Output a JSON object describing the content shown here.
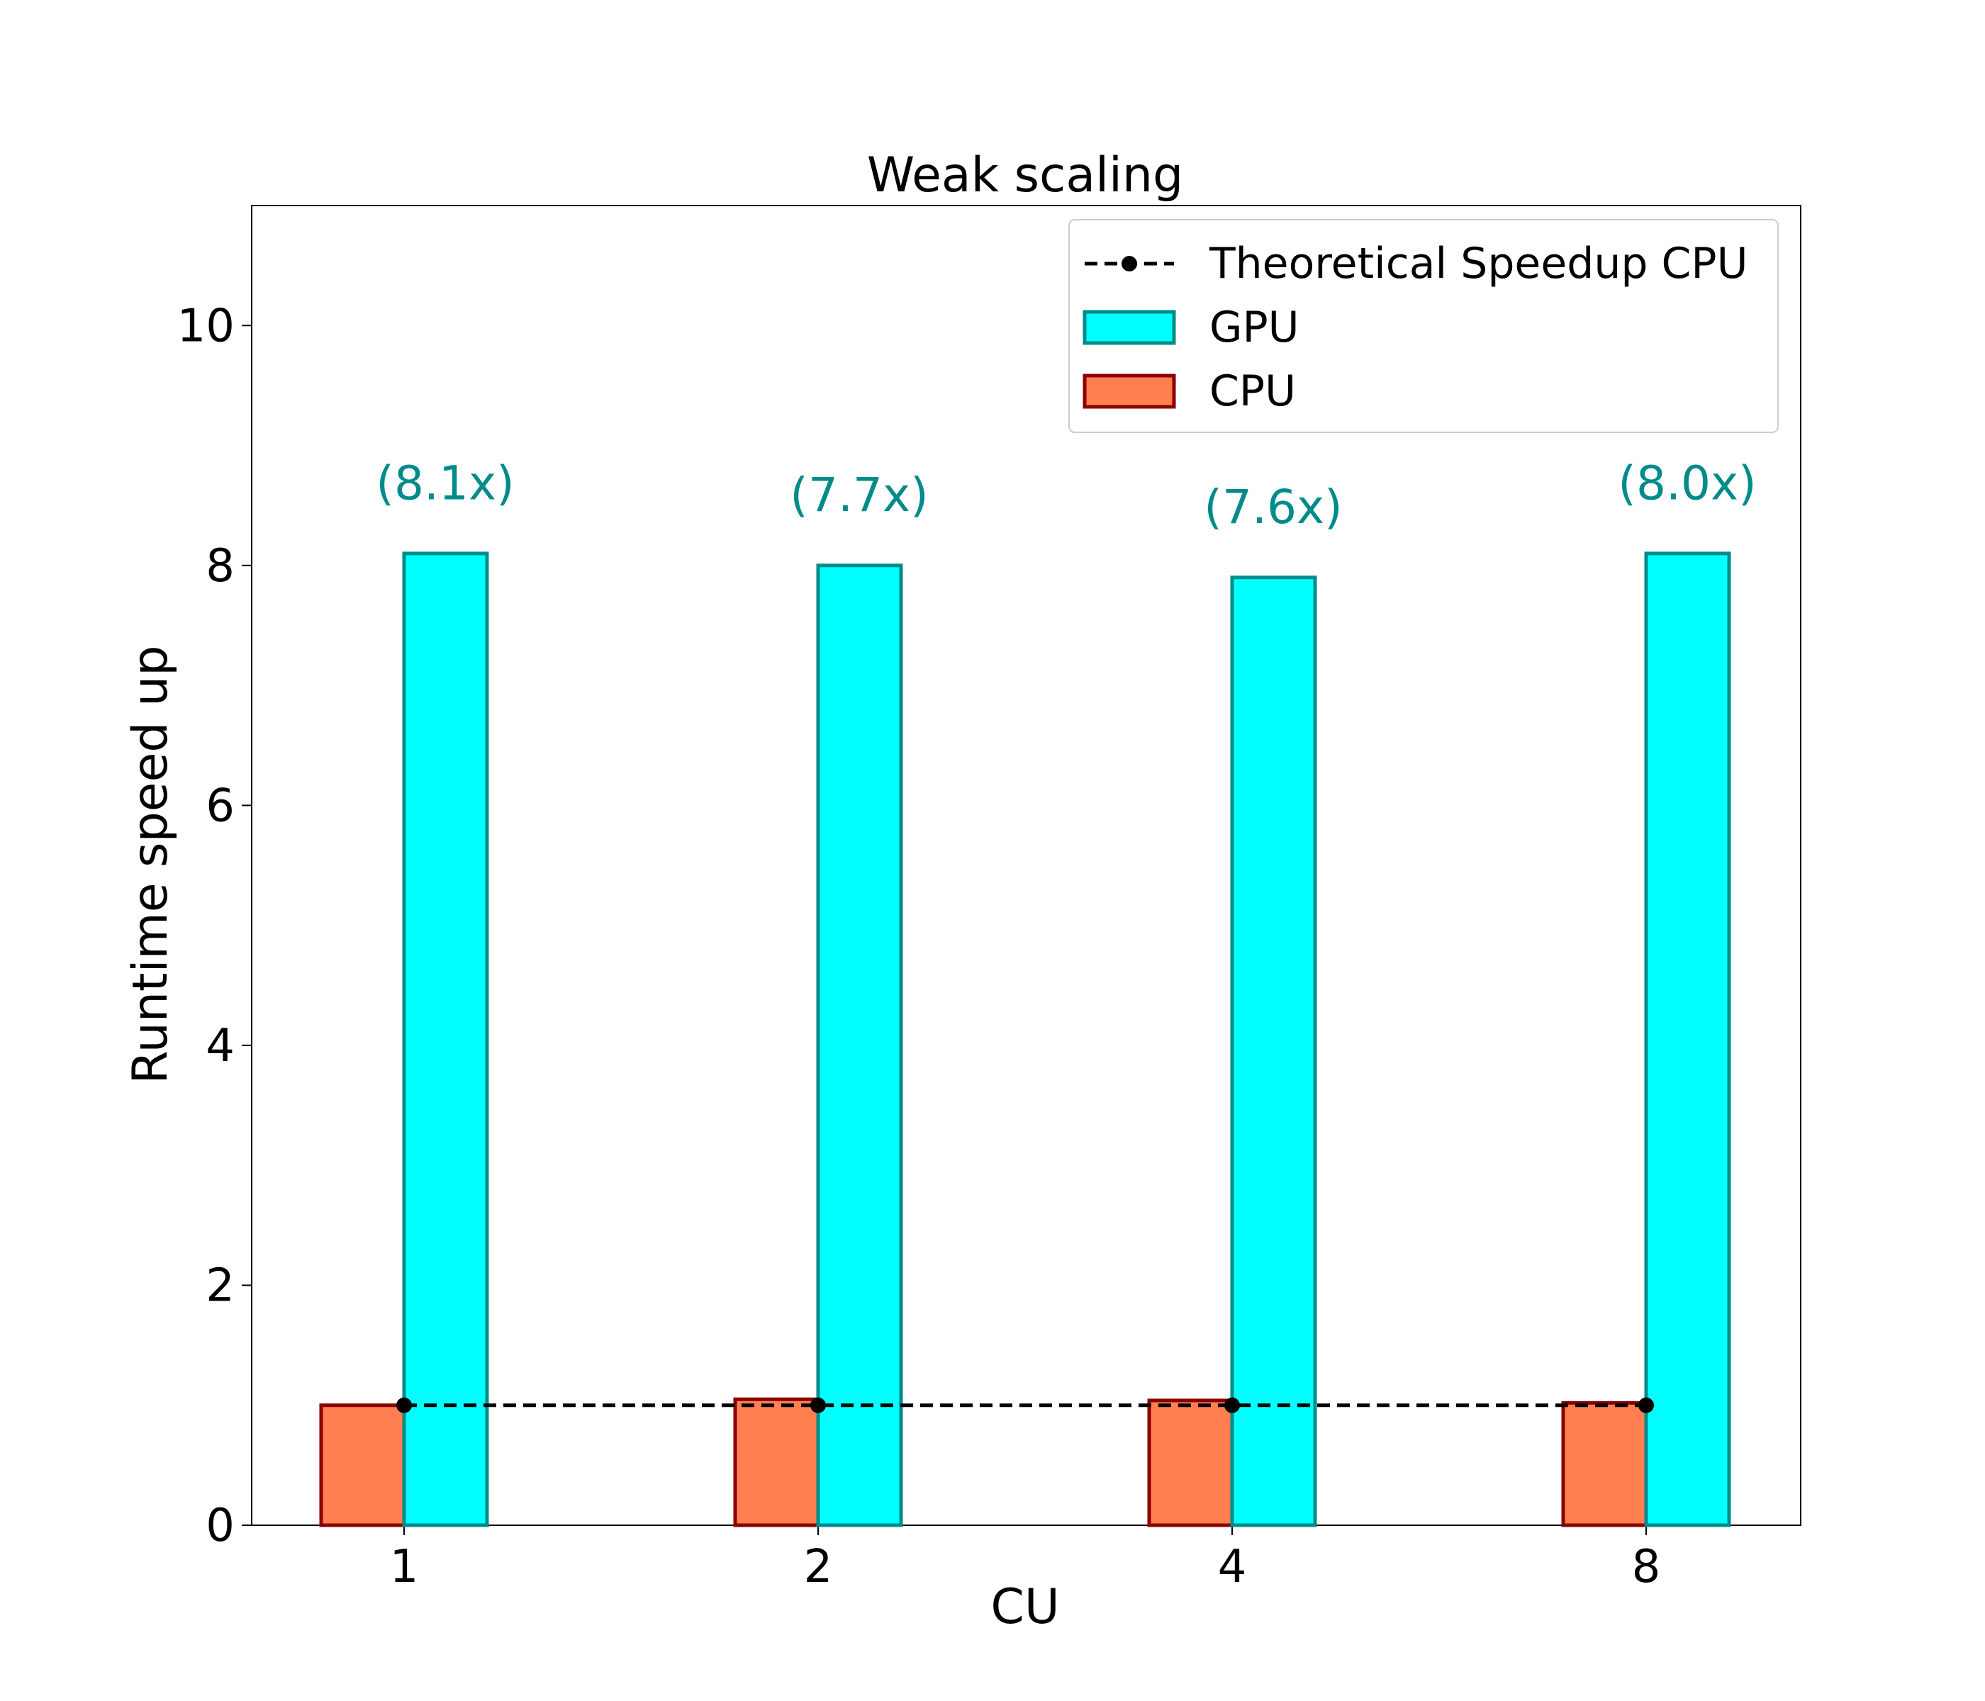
{
  "chart_data": {
    "type": "bar",
    "title": "Weak scaling",
    "xlabel": "CU",
    "ylabel": "Runtime speed up",
    "categories": [
      "1",
      "2",
      "4",
      "8"
    ],
    "ylim": [
      0,
      11
    ],
    "yticks": [
      0,
      2,
      4,
      6,
      8,
      10
    ],
    "grid": false,
    "legend_position": "top-right",
    "series": [
      {
        "name": "CPU",
        "values": [
          1.0,
          1.05,
          1.04,
          1.02
        ],
        "fill": "#ff7f50",
        "stroke": "#8b0000"
      },
      {
        "name": "GPU",
        "values": [
          8.1,
          8.0,
          7.9,
          8.1
        ],
        "fill": "#00ffff",
        "stroke": "#008b8b"
      }
    ],
    "line": {
      "name": "Theoretical Speedup CPU",
      "values": [
        1,
        1,
        1,
        1
      ],
      "color": "#000000",
      "style": "dashed",
      "marker": "circle"
    },
    "annotations": [
      {
        "category": "1",
        "text": "(8.1x)",
        "y": 8.6
      },
      {
        "category": "2",
        "text": "(7.7x)",
        "y": 8.5
      },
      {
        "category": "4",
        "text": "(7.6x)",
        "y": 8.4
      },
      {
        "category": "8",
        "text": "(8.0x)",
        "y": 8.6
      }
    ],
    "annotation_color": "#008b8b",
    "legend": [
      {
        "label": "Theoretical Speedup CPU",
        "kind": "line"
      },
      {
        "label": "GPU",
        "kind": "bar",
        "series": "GPU"
      },
      {
        "label": "CPU",
        "kind": "bar",
        "series": "CPU"
      }
    ]
  }
}
